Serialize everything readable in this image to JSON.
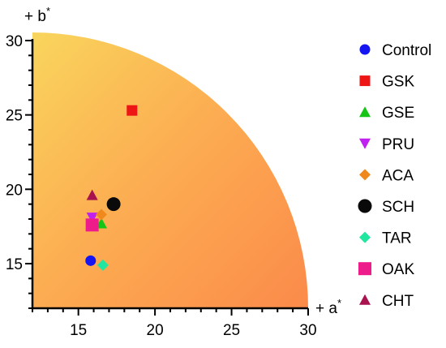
{
  "chart_data": {
    "type": "scatter",
    "x_axis": {
      "label": "+ a",
      "label_superscript": "*",
      "range": [
        12,
        30
      ],
      "ticks": [
        15,
        20,
        25,
        30
      ]
    },
    "y_axis": {
      "label": "+ b",
      "label_superscript": "*",
      "range": [
        12,
        30
      ],
      "ticks": [
        15,
        20,
        25,
        30
      ]
    },
    "background": {
      "shape": "quarter-circle",
      "color_top": "#f9d45c",
      "color_right": "#fb8a4a",
      "color_center": "#fcae52"
    },
    "legend_position": "right",
    "series": [
      {
        "name": "Control",
        "marker": "circle",
        "color": "#1515f2",
        "x": 15.8,
        "y": 15.2
      },
      {
        "name": "GSK",
        "marker": "square",
        "color": "#ee1515",
        "x": 18.5,
        "y": 25.3
      },
      {
        "name": "GSE",
        "marker": "triangle-up",
        "color": "#16c416",
        "x": 16.5,
        "y": 17.7
      },
      {
        "name": "PRU",
        "marker": "triangle-down",
        "color": "#c021f0",
        "x": 15.9,
        "y": 18.1
      },
      {
        "name": "ACA",
        "marker": "diamond",
        "color": "#f0891d",
        "x": 16.5,
        "y": 18.3
      },
      {
        "name": "SCH",
        "marker": "circle-large",
        "color": "#0a0a0a",
        "x": 17.3,
        "y": 19.0
      },
      {
        "name": "TAR",
        "marker": "diamond",
        "color": "#21e6a0",
        "x": 16.6,
        "y": 14.9
      },
      {
        "name": "OAK",
        "marker": "square-large",
        "color": "#ee1c8b",
        "x": 15.9,
        "y": 17.6
      },
      {
        "name": "CHT",
        "marker": "triangle-up",
        "color": "#a7124f",
        "x": 15.9,
        "y": 19.6
      }
    ]
  }
}
